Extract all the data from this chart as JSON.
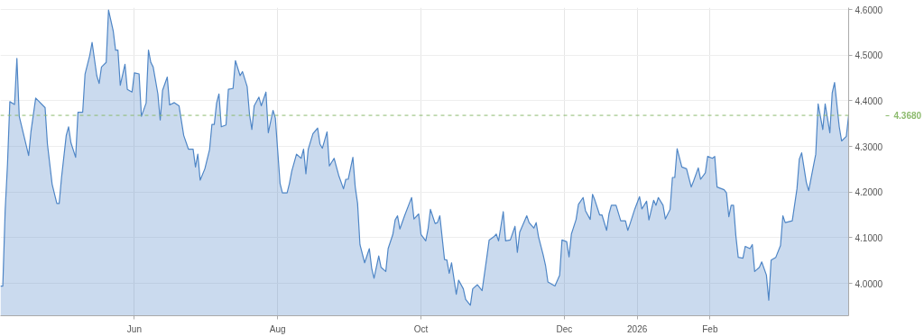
{
  "chart_data": {
    "type": "area",
    "x": [
      "2025-04-05",
      "2025-04-06",
      "2025-04-07",
      "2025-04-08",
      "2025-04-09",
      "2025-04-11",
      "2025-04-12",
      "2025-04-13",
      "2025-04-17",
      "2025-04-18",
      "2025-04-20",
      "2025-04-24",
      "2025-04-25",
      "2025-04-27",
      "2025-04-29",
      "2025-04-30",
      "2025-05-01",
      "2025-05-03",
      "2025-05-04",
      "2025-05-05",
      "2025-05-07",
      "2025-05-08",
      "2025-05-10",
      "2025-05-11",
      "2025-05-13",
      "2025-05-14",
      "2025-05-16",
      "2025-05-17",
      "2025-05-18",
      "2025-05-20",
      "2025-05-21",
      "2025-05-23",
      "2025-05-24",
      "2025-05-25",
      "2025-05-26",
      "2025-05-28",
      "2025-05-29",
      "2025-05-31",
      "2025-06-01",
      "2025-06-03",
      "2025-06-04",
      "2025-06-06",
      "2025-06-07",
      "2025-06-08",
      "2025-06-09",
      "2025-06-11",
      "2025-06-12",
      "2025-06-13",
      "2025-06-15",
      "2025-06-16",
      "2025-06-18",
      "2025-06-20",
      "2025-06-22",
      "2025-06-24",
      "2025-06-26",
      "2025-06-27",
      "2025-06-28",
      "2025-06-29",
      "2025-07-01",
      "2025-07-03",
      "2025-07-04",
      "2025-07-05",
      "2025-07-06",
      "2025-07-07",
      "2025-07-08",
      "2025-07-10",
      "2025-07-11",
      "2025-07-13",
      "2025-07-14",
      "2025-07-16",
      "2025-07-17",
      "2025-07-19",
      "2025-07-20",
      "2025-07-21",
      "2025-07-22",
      "2025-07-24",
      "2025-07-25",
      "2025-07-27",
      "2025-07-28",
      "2025-07-30",
      "2025-07-31",
      "2025-08-02",
      "2025-08-03",
      "2025-08-05",
      "2025-08-06",
      "2025-08-07",
      "2025-08-09",
      "2025-08-11",
      "2025-08-12",
      "2025-08-13",
      "2025-08-14",
      "2025-08-16",
      "2025-08-18",
      "2025-08-19",
      "2025-08-20",
      "2025-08-22",
      "2025-08-23",
      "2025-08-25",
      "2025-08-26",
      "2025-08-27",
      "2025-08-29",
      "2025-08-30",
      "2025-08-31",
      "2025-09-02",
      "2025-09-03",
      "2025-09-04",
      "2025-09-05",
      "2025-09-07",
      "2025-09-09",
      "2025-09-10",
      "2025-09-11",
      "2025-09-13",
      "2025-09-14",
      "2025-09-16",
      "2025-09-17",
      "2025-09-19",
      "2025-09-20",
      "2025-09-21",
      "2025-09-22",
      "2025-09-24",
      "2025-09-26",
      "2025-09-27",
      "2025-09-28",
      "2025-09-30",
      "2025-10-01",
      "2025-10-03",
      "2025-10-04",
      "2025-10-05",
      "2025-10-07",
      "2025-10-08",
      "2025-10-09",
      "2025-10-11",
      "2025-10-12",
      "2025-10-13",
      "2025-10-14",
      "2025-10-16",
      "2025-10-17",
      "2025-10-19",
      "2025-10-20",
      "2025-10-22",
      "2025-10-23",
      "2025-10-25",
      "2025-10-27",
      "2025-10-29",
      "2025-10-30",
      "2025-11-01",
      "2025-11-02",
      "2025-11-03",
      "2025-11-05",
      "2025-11-06",
      "2025-11-08",
      "2025-11-10",
      "2025-11-11",
      "2025-11-12",
      "2025-11-15",
      "2025-11-16",
      "2025-11-18",
      "2025-11-19",
      "2025-11-20",
      "2025-11-22",
      "2025-11-23",
      "2025-11-24",
      "2025-11-27",
      "2025-11-29",
      "2025-11-30",
      "2025-12-02",
      "2025-12-03",
      "2025-12-04",
      "2025-12-06",
      "2025-12-07",
      "2025-12-09",
      "2025-12-10",
      "2025-12-12",
      "2025-12-13",
      "2025-12-14",
      "2025-12-16",
      "2025-12-17",
      "2025-12-19",
      "2025-12-20",
      "2025-12-21",
      "2025-12-23",
      "2025-12-25",
      "2025-12-27",
      "2025-12-28",
      "2025-12-29",
      "2025-12-31",
      "2026-01-02",
      "2026-01-03",
      "2026-01-05",
      "2026-01-06",
      "2026-01-08",
      "2026-01-09",
      "2026-01-10",
      "2026-01-12",
      "2026-01-13",
      "2026-01-15",
      "2026-01-16",
      "2026-01-17",
      "2026-01-18",
      "2026-01-20",
      "2026-01-22",
      "2026-01-24",
      "2026-01-25",
      "2026-01-27",
      "2026-01-28",
      "2026-01-30",
      "2026-01-31",
      "2026-02-02",
      "2026-02-03",
      "2026-02-04",
      "2026-02-07",
      "2026-02-08",
      "2026-02-09",
      "2026-02-10",
      "2026-02-11",
      "2026-02-12",
      "2026-02-13",
      "2026-02-15",
      "2026-02-16",
      "2026-02-18",
      "2026-02-19",
      "2026-02-20",
      "2026-02-22",
      "2026-02-23",
      "2026-02-25",
      "2026-02-26",
      "2026-02-27",
      "2026-03-01",
      "2026-03-03",
      "2026-03-04",
      "2026-03-05",
      "2026-03-08",
      "2026-03-10",
      "2026-03-11",
      "2026-03-12",
      "2026-03-14",
      "2026-03-15",
      "2026-03-17",
      "2026-03-18",
      "2026-03-19",
      "2026-03-21",
      "2026-03-22",
      "2026-03-24",
      "2026-03-25",
      "2026-03-26",
      "2026-03-28",
      "2026-03-29",
      "2026-03-31",
      "2026-04-01"
    ],
    "series": [
      {
        "color": "#4f86c6",
        "values": [
          3.994,
          3.994,
          4.159,
          4.261,
          4.398,
          4.392,
          4.493,
          4.366,
          4.28,
          4.333,
          4.406,
          4.385,
          4.305,
          4.217,
          4.175,
          4.175,
          4.232,
          4.324,
          4.343,
          4.308,
          4.276,
          4.375,
          4.375,
          4.458,
          4.499,
          4.528,
          4.455,
          4.438,
          4.474,
          4.484,
          4.599,
          4.553,
          4.511,
          4.511,
          4.434,
          4.48,
          4.425,
          4.419,
          4.461,
          4.459,
          4.366,
          4.395,
          4.511,
          4.484,
          4.474,
          4.415,
          4.358,
          4.423,
          4.452,
          4.391,
          4.396,
          4.389,
          4.324,
          4.294,
          4.294,
          4.255,
          4.283,
          4.226,
          4.251,
          4.293,
          4.348,
          4.348,
          4.395,
          4.415,
          4.343,
          4.347,
          4.425,
          4.427,
          4.488,
          4.455,
          4.464,
          4.431,
          4.37,
          4.337,
          4.389,
          4.408,
          4.389,
          4.419,
          4.33,
          4.379,
          4.362,
          4.219,
          4.198,
          4.198,
          4.219,
          4.246,
          4.283,
          4.274,
          4.294,
          4.24,
          4.294,
          4.328,
          4.34,
          4.305,
          4.296,
          4.332,
          4.257,
          4.274,
          4.255,
          4.236,
          4.207,
          4.228,
          4.228,
          4.276,
          4.211,
          4.175,
          4.085,
          4.045,
          4.076,
          4.033,
          4.011,
          4.06,
          4.035,
          4.026,
          4.076,
          4.107,
          4.139,
          4.148,
          4.119,
          4.148,
          4.175,
          4.188,
          4.141,
          4.152,
          4.107,
          4.093,
          4.119,
          4.162,
          4.131,
          4.133,
          4.148,
          4.052,
          4.051,
          4.022,
          4.045,
          3.976,
          4.007,
          3.988,
          3.965,
          3.952,
          3.988,
          3.997,
          3.984,
          4.057,
          4.095,
          4.102,
          4.108,
          4.093,
          4.157,
          4.093,
          4.095,
          4.125,
          4.068,
          4.112,
          4.148,
          4.133,
          4.121,
          4.133,
          4.102,
          4.062,
          4.039,
          4.003,
          3.994,
          4.018,
          4.095,
          4.091,
          4.058,
          4.108,
          4.14,
          4.173,
          4.188,
          4.159,
          4.14,
          4.195,
          4.182,
          4.15,
          4.15,
          4.116,
          4.152,
          4.171,
          4.171,
          4.137,
          4.137,
          4.116,
          4.131,
          4.163,
          4.19,
          4.163,
          4.18,
          4.139,
          4.182,
          4.171,
          4.188,
          4.171,
          4.141,
          4.162,
          4.232,
          4.232,
          4.295,
          4.255,
          4.251,
          4.211,
          4.224,
          4.253,
          4.228,
          4.242,
          4.278,
          4.274,
          4.278,
          4.211,
          4.205,
          4.198,
          4.146,
          4.171,
          4.171,
          4.104,
          4.057,
          4.055,
          4.081,
          4.076,
          4.085,
          4.026,
          4.035,
          4.047,
          4.018,
          3.963,
          4.051,
          4.057,
          4.083,
          4.148,
          4.133,
          4.137,
          4.207,
          4.272,
          4.286,
          4.221,
          4.203,
          4.257,
          4.283,
          4.393,
          4.337,
          4.393,
          4.33,
          4.417,
          4.44,
          4.343,
          4.312,
          4.322,
          4.368
        ]
      }
    ],
    "xlim": [
      "2025-04-05",
      "2026-04-01"
    ],
    "xticks": [
      {
        "value": "2025-06-01",
        "label": "Jun"
      },
      {
        "value": "2025-08-01",
        "label": "Aug"
      },
      {
        "value": "2025-10-01",
        "label": "Oct"
      },
      {
        "value": "2025-12-01",
        "label": "Dec"
      },
      {
        "value": "2026-01-01",
        "label": "2026"
      },
      {
        "value": "2026-02-01",
        "label": "Feb"
      }
    ],
    "ylim": [
      3.929,
      4.604
    ],
    "yticks": [
      {
        "value": 4.0,
        "label": "4.0000"
      },
      {
        "value": 4.1,
        "label": "4.1000"
      },
      {
        "value": 4.2,
        "label": "4.2000"
      },
      {
        "value": 4.3,
        "label": "4.3000"
      },
      {
        "value": 4.4,
        "label": "4.4000"
      },
      {
        "value": 4.5,
        "label": "4.5000"
      },
      {
        "value": 4.6,
        "label": "4.6000"
      }
    ],
    "grid": true,
    "ref_lines": [
      {
        "axis": "y",
        "value": 4.368,
        "label": "4.3680",
        "color": "#8dbb6e",
        "line_style": "dashed"
      }
    ]
  }
}
